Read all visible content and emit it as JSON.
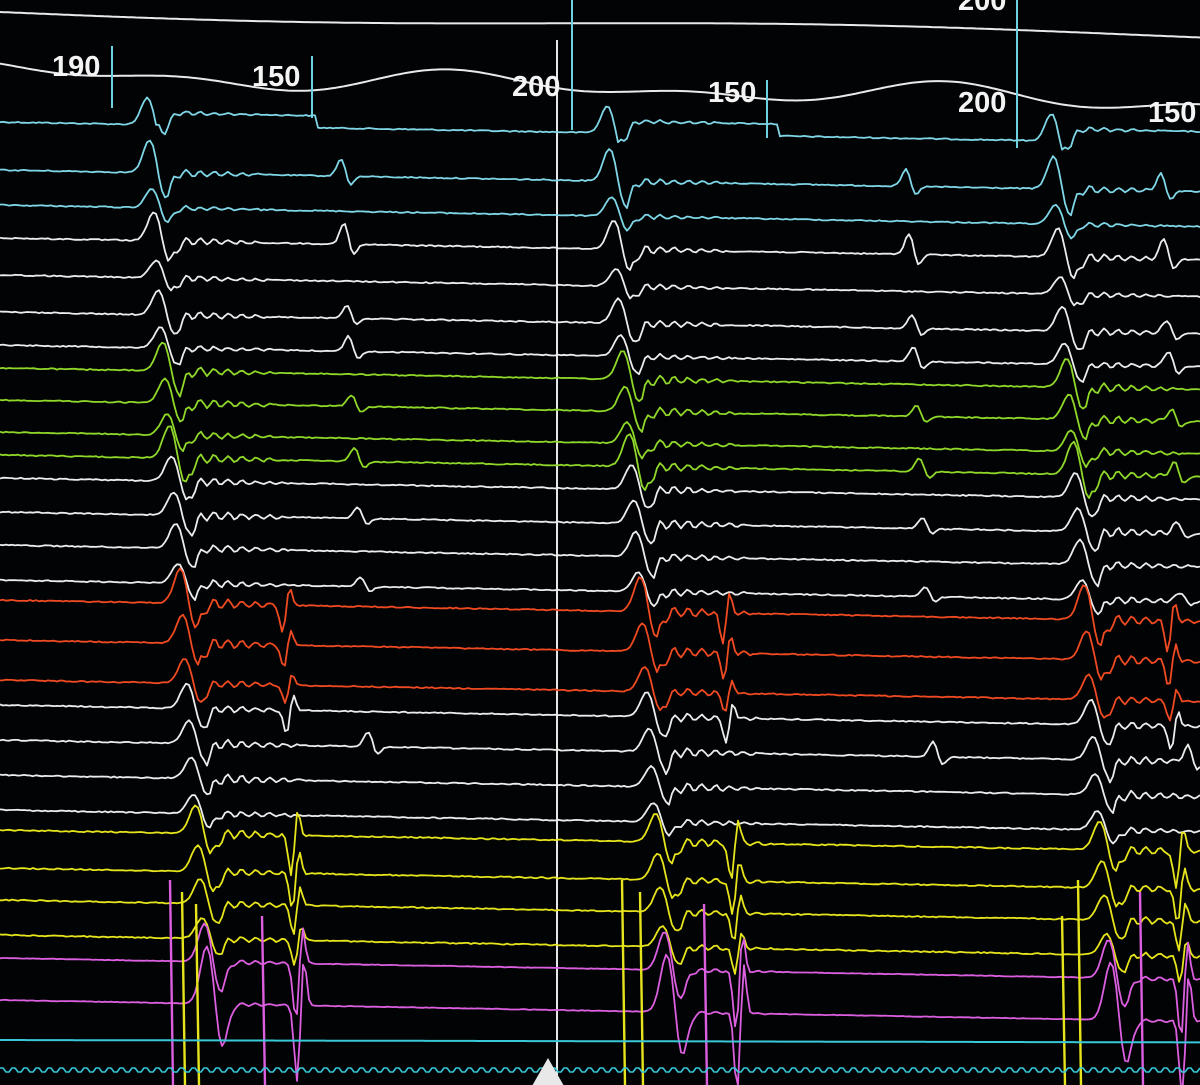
{
  "display": {
    "background": "#020304",
    "interval_labels": [
      "190",
      "150",
      "200",
      "150",
      "200",
      "150"
    ],
    "partial_top_label": "200",
    "channel_colors": {
      "reference": "#e9e9e9",
      "marker_ticks": "#6fd0df",
      "cyan": "#7fd6e6",
      "white": "#ececec",
      "green": "#8fd82a",
      "red": "#ef4a22",
      "yellow": "#e6e41c",
      "magenta": "#dc5fe0",
      "bottom_baseline": "#38c8d8"
    },
    "cursor": "cursor-triangle-icon"
  }
}
